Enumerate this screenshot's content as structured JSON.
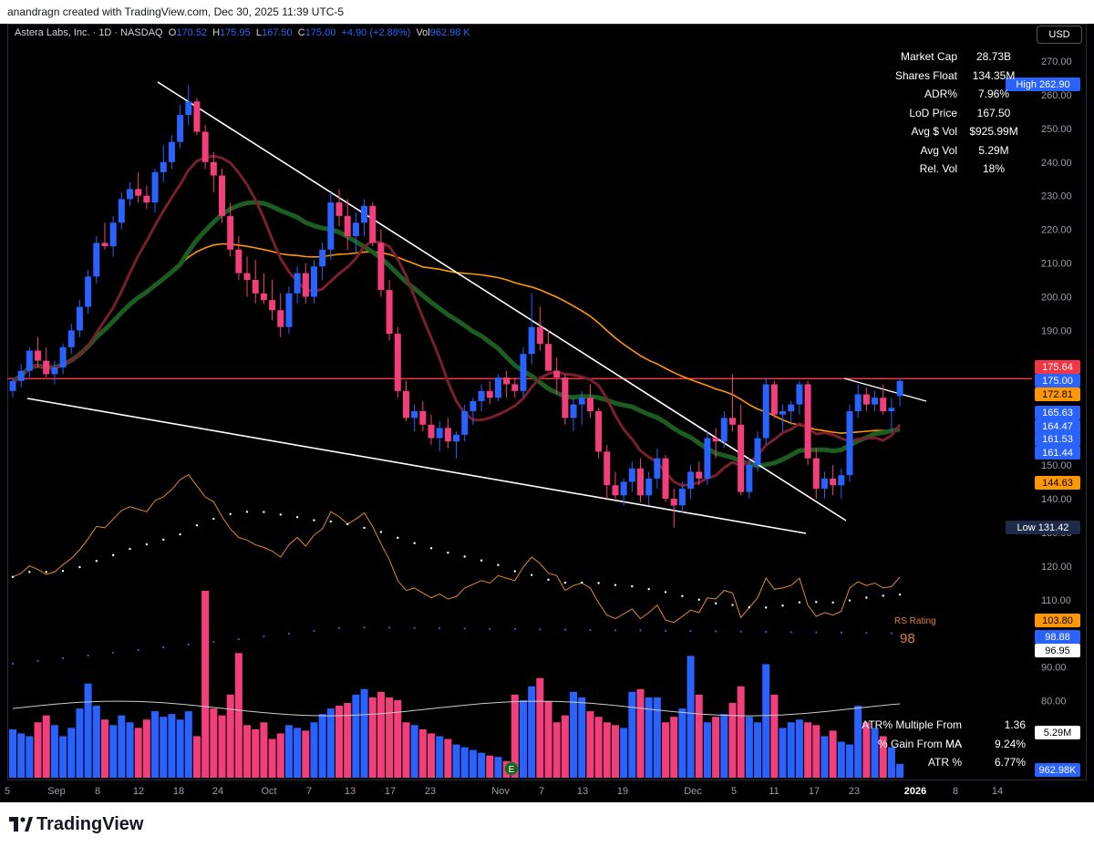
{
  "header": {
    "attribution": "anandragn created with TradingView.com, Dec 30, 2025 11:39 UTC-5"
  },
  "legend": {
    "symbol": "Astera Labs, Inc. · 1D · NASDAQ",
    "o_label": "O",
    "o": "170.52",
    "h_label": "H",
    "h": "175.95",
    "l_label": "L",
    "l": "167.50",
    "c_label": "C",
    "c": "175.00",
    "change": "+4.90 (+2.88%)",
    "vol_label": "Vol",
    "vol": "962.98 K"
  },
  "currency": "USD",
  "stats_top": [
    {
      "k": "Market Cap",
      "v": "28.73B"
    },
    {
      "k": "Shares Float",
      "v": "134.35M"
    },
    {
      "k": "ADR%",
      "v": "7.96%"
    },
    {
      "k": "LoD Price",
      "v": "167.50"
    },
    {
      "k": "Avg $ Vol",
      "v": "$925.99M"
    },
    {
      "k": "Avg Vol",
      "v": "5.29M"
    },
    {
      "k": "Rel. Vol",
      "v": "18%"
    }
  ],
  "stats_bottom": [
    {
      "k": "ATR% Multiple From MA",
      "v": "1.36"
    },
    {
      "k": "% Gain From MA",
      "v": "9.24%"
    },
    {
      "k": "ATR %",
      "v": "6.77%"
    }
  ],
  "footer": {
    "brand": "TradingView"
  },
  "chart_data": {
    "type": "candlestick",
    "title": "Astera Labs, Inc. · 1D · NASDAQ",
    "ylim": [
      131,
      275
    ],
    "price_ticks": [
      270,
      260,
      250,
      240,
      230,
      220,
      210,
      200,
      190,
      180,
      170,
      160,
      150,
      140,
      130,
      120,
      110,
      100,
      90,
      80
    ],
    "x_ticks": [
      "5",
      "Sep",
      "8",
      "12",
      "18",
      "24",
      "Oct",
      "7",
      "13",
      "17",
      "23",
      "Nov",
      "7",
      "13",
      "19",
      "Dec",
      "5",
      "11",
      "17",
      "23",
      "2026",
      "8",
      "14"
    ],
    "candles": [
      [
        172,
        176,
        170,
        175
      ],
      [
        175,
        180,
        173,
        178
      ],
      [
        178,
        185,
        176,
        184
      ],
      [
        184,
        188,
        179,
        181
      ],
      [
        181,
        185,
        176,
        177
      ],
      [
        177,
        181,
        174,
        179
      ],
      [
        179,
        186,
        177,
        185
      ],
      [
        185,
        192,
        183,
        190
      ],
      [
        190,
        199,
        188,
        197
      ],
      [
        197,
        208,
        195,
        206
      ],
      [
        206,
        218,
        204,
        216
      ],
      [
        216,
        222,
        214,
        215
      ],
      [
        215,
        224,
        212,
        222
      ],
      [
        222,
        231,
        220,
        229
      ],
      [
        229,
        234,
        227,
        232
      ],
      [
        232,
        237,
        228,
        230
      ],
      [
        230,
        233,
        226,
        228
      ],
      [
        228,
        238,
        225,
        237
      ],
      [
        237,
        245,
        234,
        240
      ],
      [
        240,
        248,
        238,
        246
      ],
      [
        246,
        257,
        244,
        254
      ],
      [
        254,
        262.9,
        251,
        258
      ],
      [
        258,
        259,
        248,
        249
      ],
      [
        249,
        251,
        238,
        240
      ],
      [
        240,
        243,
        231,
        236
      ],
      [
        236,
        238,
        222,
        224
      ],
      [
        224,
        228,
        212,
        214
      ],
      [
        214,
        218,
        205,
        207
      ],
      [
        207,
        212,
        200,
        205
      ],
      [
        205,
        211,
        198,
        201
      ],
      [
        201,
        207,
        198,
        199
      ],
      [
        199,
        205,
        193,
        196
      ],
      [
        196,
        201,
        188,
        191
      ],
      [
        191,
        203,
        189,
        201
      ],
      [
        201,
        209,
        198,
        207
      ],
      [
        207,
        210,
        198,
        200
      ],
      [
        200,
        211,
        198,
        209
      ],
      [
        209,
        216,
        205,
        214
      ],
      [
        214,
        231,
        211,
        228
      ],
      [
        228,
        232,
        221,
        224
      ],
      [
        224,
        229,
        214,
        218
      ],
      [
        218,
        225,
        213,
        222
      ],
      [
        222,
        229,
        218,
        227
      ],
      [
        227,
        228,
        215,
        216
      ],
      [
        216,
        220,
        200,
        202
      ],
      [
        202,
        205,
        187,
        189
      ],
      [
        189,
        191,
        170,
        172
      ],
      [
        172,
        175,
        163,
        164
      ],
      [
        164,
        168,
        160,
        166
      ],
      [
        166,
        169,
        160,
        162
      ],
      [
        162,
        165,
        156,
        158
      ],
      [
        158,
        163,
        154,
        161
      ],
      [
        161,
        164,
        155,
        157
      ],
      [
        157,
        160,
        152,
        159
      ],
      [
        159,
        168,
        157,
        166
      ],
      [
        166,
        170,
        162,
        169
      ],
      [
        169,
        174,
        166,
        172
      ],
      [
        172,
        175,
        168,
        170
      ],
      [
        170,
        177,
        169,
        176
      ],
      [
        176,
        178,
        170,
        174
      ],
      [
        174,
        176,
        170,
        172
      ],
      [
        172,
        185,
        170,
        183
      ],
      [
        183,
        201,
        180,
        191
      ],
      [
        191,
        197,
        184,
        186
      ],
      [
        186,
        190,
        178,
        178
      ],
      [
        178,
        182,
        171,
        176
      ],
      [
        176,
        177,
        162,
        164
      ],
      [
        164,
        170,
        160,
        168
      ],
      [
        168,
        172,
        162,
        170
      ],
      [
        170,
        174,
        164,
        166
      ],
      [
        166,
        167,
        152,
        154
      ],
      [
        154,
        156,
        140,
        144
      ],
      [
        144,
        148,
        140,
        141
      ],
      [
        141,
        146,
        138,
        145
      ],
      [
        145,
        151,
        142,
        149
      ],
      [
        149,
        152,
        139,
        141
      ],
      [
        141,
        148,
        138,
        146
      ],
      [
        146,
        155,
        143,
        152
      ],
      [
        152,
        153,
        139,
        140
      ],
      [
        140,
        143,
        131.4,
        138
      ],
      [
        138,
        145,
        136,
        143
      ],
      [
        143,
        150,
        140,
        148
      ],
      [
        148,
        151,
        144,
        146
      ],
      [
        146,
        160,
        144,
        158
      ],
      [
        158,
        161,
        152,
        157
      ],
      [
        157,
        166,
        155,
        164
      ],
      [
        164,
        177,
        160,
        162
      ],
      [
        162,
        168,
        141,
        142
      ],
      [
        142,
        152,
        140,
        150
      ],
      [
        150,
        160,
        148,
        158
      ],
      [
        158,
        176,
        156,
        174
      ],
      [
        174,
        175,
        164,
        165
      ],
      [
        165,
        168,
        160,
        166
      ],
      [
        166,
        169,
        162,
        168
      ],
      [
        168,
        175,
        165,
        174
      ],
      [
        174,
        175,
        150,
        152
      ],
      [
        152,
        155,
        140,
        143
      ],
      [
        143,
        148,
        140,
        146
      ],
      [
        146,
        150,
        141,
        144
      ],
      [
        144,
        149,
        140,
        147
      ],
      [
        147,
        168,
        145,
        166
      ],
      [
        166,
        174,
        164,
        171
      ],
      [
        171,
        173,
        166,
        168
      ],
      [
        168,
        172,
        166,
        170
      ],
      [
        170,
        174,
        165,
        166
      ],
      [
        166,
        170,
        160,
        167
      ],
      [
        170.52,
        175.95,
        167.5,
        175
      ]
    ],
    "price_labels": [
      {
        "label": "High",
        "value": "262.90"
      },
      {
        "value": "175.64"
      },
      {
        "value": "175.00"
      },
      {
        "value": "172.81"
      },
      {
        "value": "165.63"
      },
      {
        "value": "164.47"
      },
      {
        "value": "161.53"
      },
      {
        "value": "161.44"
      },
      {
        "value": "144.63"
      },
      {
        "label": "Low",
        "value": "131.42"
      },
      {
        "value": "103.80"
      },
      {
        "value": "98.88"
      },
      {
        "value": "96.95"
      },
      {
        "value": "5.29M"
      },
      {
        "value": "962.98K"
      }
    ],
    "rs_rating": {
      "label": "RS Rating",
      "value": "98"
    },
    "volume": [
      35,
      32,
      30,
      40,
      45,
      38,
      30,
      36,
      50,
      68,
      52,
      42,
      38,
      45,
      40,
      36,
      42,
      48,
      44,
      46,
      42,
      48,
      30,
      135,
      50,
      45,
      60,
      90,
      38,
      35,
      40,
      28,
      32,
      38,
      36,
      34,
      40,
      46,
      50,
      52,
      54,
      60,
      64,
      58,
      62,
      58,
      56,
      40,
      38,
      35,
      32,
      30,
      28,
      24,
      22,
      20,
      18,
      16,
      15,
      12,
      60,
      56,
      66,
      72,
      55,
      40,
      45,
      62,
      58,
      48,
      44,
      40,
      38,
      36,
      62,
      64,
      58,
      58,
      40,
      44,
      50,
      88,
      60,
      40,
      44,
      46,
      54,
      66,
      44,
      40,
      82,
      60,
      36,
      40,
      42,
      40,
      38,
      30,
      34,
      26,
      24,
      52,
      40,
      36,
      30,
      22,
      10
    ]
  }
}
